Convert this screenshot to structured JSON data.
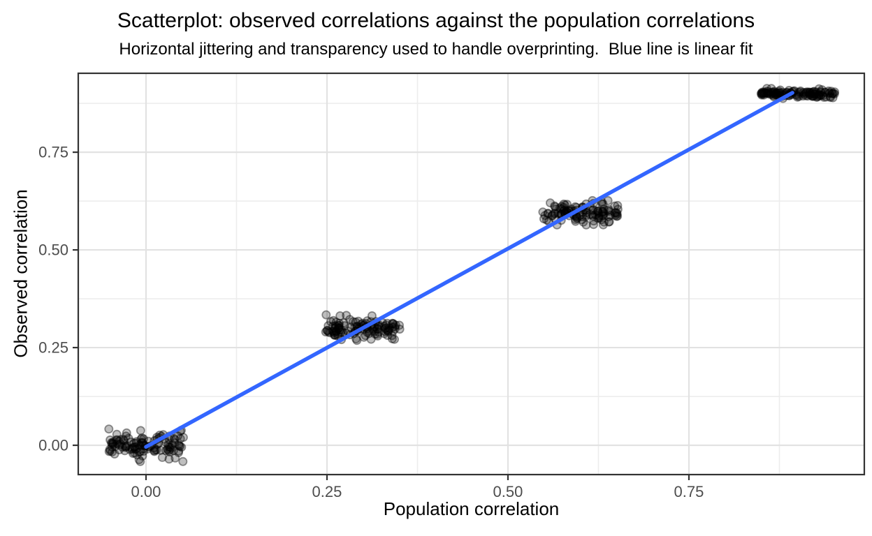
{
  "chart_data": {
    "type": "scatter",
    "title": "Scatterplot: observed correlations against the population correlations",
    "subtitle": "Horizontal jittering and transparency used to handle overprinting.  Blue line is linear fit",
    "xlabel": "Population correlation",
    "ylabel": "Observed correlation",
    "x_tick_labels": [
      "0.00",
      "0.25",
      "0.50",
      "0.75"
    ],
    "x_tick_values": [
      0.0,
      0.25,
      0.5,
      0.75
    ],
    "y_tick_labels": [
      "0.00",
      "0.25",
      "0.50",
      "0.75"
    ],
    "y_tick_values": [
      0.0,
      0.25,
      0.5,
      0.75
    ],
    "x_minor_values": [
      0.125,
      0.375,
      0.625,
      0.875
    ],
    "y_minor_values": [
      0.125,
      0.375,
      0.625,
      0.875
    ],
    "xlim": [
      -0.0936,
      0.9923
    ],
    "ylim": [
      -0.075,
      0.952
    ],
    "grid": "major-and-minor",
    "legend": "none",
    "clusters": [
      {
        "population_r": 0.0,
        "observed_mean": 0.0,
        "observed_sd": 0.016,
        "jitter_halfwidth": 0.052,
        "n": 120
      },
      {
        "population_r": 0.3,
        "observed_mean": 0.3,
        "observed_sd": 0.013,
        "jitter_halfwidth": 0.052,
        "n": 120
      },
      {
        "population_r": 0.6,
        "observed_mean": 0.595,
        "observed_sd": 0.012,
        "jitter_halfwidth": 0.052,
        "n": 120
      },
      {
        "population_r": 0.9,
        "observed_mean": 0.9,
        "observed_sd": 0.005,
        "jitter_halfwidth": 0.052,
        "n": 120
      }
    ],
    "fit_line": {
      "x1": 0.0,
      "y1": -0.004,
      "x2": 0.893,
      "y2": 0.902
    },
    "point_style": {
      "radius": 5.6,
      "fill_alpha": 0.25,
      "stroke_alpha": 0.4
    },
    "colors": {
      "background": "#FFFFFF",
      "panel_border": "#333333",
      "grid_major": "#E2E2E2",
      "grid_minor": "#EDEDED",
      "tick_mark": "#333333",
      "tick_label": "#4D4D4D",
      "text": "#000000",
      "point": "#000000",
      "fit_line": "#3366FF"
    }
  }
}
